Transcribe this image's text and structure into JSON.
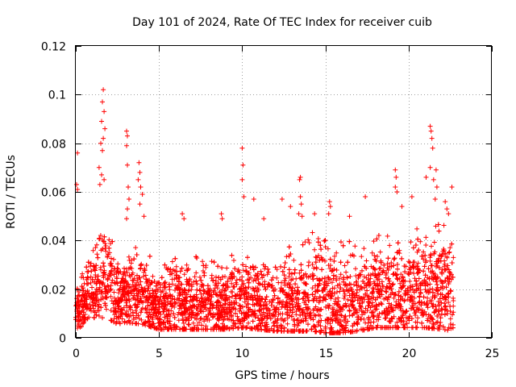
{
  "chart_data": {
    "type": "scatter",
    "title": "Day 101 of 2024, Rate Of TEC Index for receiver cuib",
    "xlabel": "GPS time / hours",
    "ylabel": "ROTI / TECUs",
    "xlim": [
      0,
      25
    ],
    "ylim": [
      0,
      0.12
    ],
    "x_ticks": [
      "0",
      "5",
      "10",
      "15",
      "20",
      "25"
    ],
    "y_ticks": [
      "0",
      "0.02",
      "0.04",
      "0.06",
      "0.08",
      "0.1",
      "0.12"
    ],
    "x_tick_values": [
      0,
      5,
      10,
      15,
      20,
      25
    ],
    "y_tick_values": [
      0,
      0.02,
      0.04,
      0.06,
      0.08,
      0.1,
      0.12
    ],
    "grid": true,
    "marker": "+",
    "color": "#ff0000",
    "x_range_data": [
      0,
      22.7
    ],
    "series": [
      {
        "name": "ROTI",
        "notable_points": [
          {
            "x": 0.1,
            "y": 0.076
          },
          {
            "x": 0.05,
            "y": 0.063
          },
          {
            "x": 0.1,
            "y": 0.061
          },
          {
            "x": 1.65,
            "y": 0.102
          },
          {
            "x": 1.6,
            "y": 0.097
          },
          {
            "x": 1.7,
            "y": 0.093
          },
          {
            "x": 1.55,
            "y": 0.089
          },
          {
            "x": 1.75,
            "y": 0.086
          },
          {
            "x": 1.65,
            "y": 0.082
          },
          {
            "x": 1.5,
            "y": 0.08
          },
          {
            "x": 1.6,
            "y": 0.077
          },
          {
            "x": 1.4,
            "y": 0.07
          },
          {
            "x": 1.55,
            "y": 0.067
          },
          {
            "x": 1.7,
            "y": 0.065
          },
          {
            "x": 1.45,
            "y": 0.063
          },
          {
            "x": 3.05,
            "y": 0.085
          },
          {
            "x": 3.1,
            "y": 0.083
          },
          {
            "x": 3.05,
            "y": 0.079
          },
          {
            "x": 3.1,
            "y": 0.071
          },
          {
            "x": 3.15,
            "y": 0.062
          },
          {
            "x": 3.2,
            "y": 0.057
          },
          {
            "x": 3.1,
            "y": 0.053
          },
          {
            "x": 3.05,
            "y": 0.049
          },
          {
            "x": 3.8,
            "y": 0.072
          },
          {
            "x": 3.85,
            "y": 0.068
          },
          {
            "x": 3.75,
            "y": 0.065
          },
          {
            "x": 3.9,
            "y": 0.062
          },
          {
            "x": 4.0,
            "y": 0.059
          },
          {
            "x": 3.85,
            "y": 0.055
          },
          {
            "x": 4.1,
            "y": 0.05
          },
          {
            "x": 6.4,
            "y": 0.051
          },
          {
            "x": 6.5,
            "y": 0.049
          },
          {
            "x": 8.75,
            "y": 0.051
          },
          {
            "x": 8.8,
            "y": 0.049
          },
          {
            "x": 10.0,
            "y": 0.078
          },
          {
            "x": 10.05,
            "y": 0.071
          },
          {
            "x": 10.0,
            "y": 0.065
          },
          {
            "x": 10.1,
            "y": 0.058
          },
          {
            "x": 10.7,
            "y": 0.057
          },
          {
            "x": 11.3,
            "y": 0.049
          },
          {
            "x": 12.4,
            "y": 0.057
          },
          {
            "x": 12.9,
            "y": 0.054
          },
          {
            "x": 13.5,
            "y": 0.066
          },
          {
            "x": 13.45,
            "y": 0.065
          },
          {
            "x": 13.5,
            "y": 0.058
          },
          {
            "x": 13.55,
            "y": 0.055
          },
          {
            "x": 13.4,
            "y": 0.051
          },
          {
            "x": 13.6,
            "y": 0.05
          },
          {
            "x": 14.35,
            "y": 0.051
          },
          {
            "x": 15.25,
            "y": 0.056
          },
          {
            "x": 15.3,
            "y": 0.054
          },
          {
            "x": 15.2,
            "y": 0.051
          },
          {
            "x": 16.45,
            "y": 0.05
          },
          {
            "x": 17.4,
            "y": 0.058
          },
          {
            "x": 19.2,
            "y": 0.069
          },
          {
            "x": 19.25,
            "y": 0.066
          },
          {
            "x": 19.2,
            "y": 0.062
          },
          {
            "x": 19.3,
            "y": 0.06
          },
          {
            "x": 19.6,
            "y": 0.054
          },
          {
            "x": 20.2,
            "y": 0.058
          },
          {
            "x": 21.05,
            "y": 0.066
          },
          {
            "x": 21.3,
            "y": 0.087
          },
          {
            "x": 21.35,
            "y": 0.085
          },
          {
            "x": 21.4,
            "y": 0.082
          },
          {
            "x": 21.45,
            "y": 0.078
          },
          {
            "x": 21.3,
            "y": 0.07
          },
          {
            "x": 21.65,
            "y": 0.069
          },
          {
            "x": 21.5,
            "y": 0.065
          },
          {
            "x": 21.7,
            "y": 0.062
          },
          {
            "x": 21.6,
            "y": 0.057
          },
          {
            "x": 22.6,
            "y": 0.062
          },
          {
            "x": 22.2,
            "y": 0.056
          },
          {
            "x": 22.3,
            "y": 0.053
          },
          {
            "x": 22.4,
            "y": 0.051
          }
        ],
        "bulk_profile_hours": [
          0,
          1,
          1.5,
          2,
          2.5,
          3,
          4,
          5,
          6,
          7,
          8,
          9,
          10,
          11,
          12,
          13,
          14,
          15,
          16,
          17,
          18,
          19,
          20,
          21,
          22,
          22.7
        ],
        "bulk_profile_upper": [
          0.03,
          0.035,
          0.048,
          0.045,
          0.035,
          0.038,
          0.036,
          0.028,
          0.033,
          0.032,
          0.03,
          0.031,
          0.035,
          0.032,
          0.03,
          0.036,
          0.04,
          0.042,
          0.04,
          0.036,
          0.04,
          0.042,
          0.04,
          0.045,
          0.048,
          0.04
        ],
        "bulk_profile_lower": [
          0.005,
          0.01,
          0.012,
          0.011,
          0.008,
          0.009,
          0.008,
          0.005,
          0.005,
          0.005,
          0.005,
          0.005,
          0.006,
          0.005,
          0.004,
          0.004,
          0.004,
          0.003,
          0.003,
          0.004,
          0.006,
          0.006,
          0.006,
          0.006,
          0.005,
          0.004
        ]
      }
    ]
  }
}
